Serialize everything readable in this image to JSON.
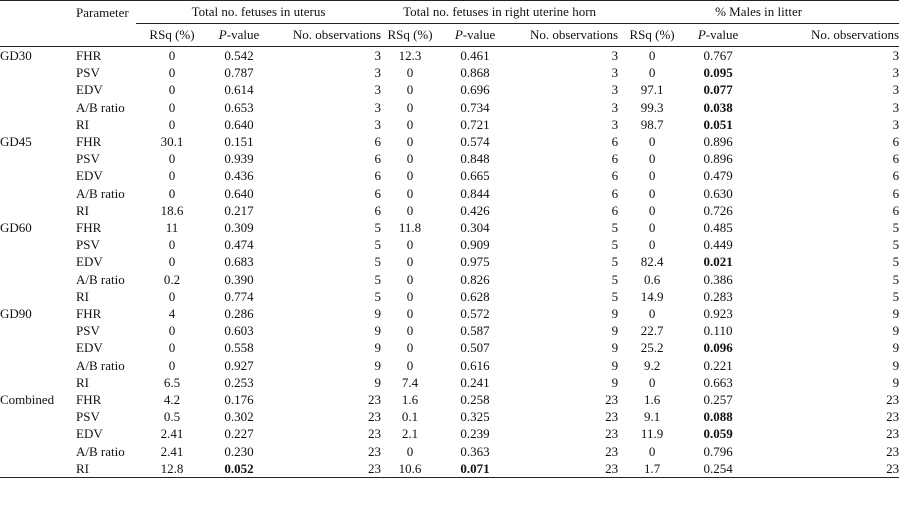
{
  "headers": {
    "parameter": "Parameter",
    "groups": [
      "Total no. fetuses in uterus",
      "Total no. fetuses in right uterine horn",
      "% Males in litter"
    ],
    "sub": {
      "rsq": "RSq (%)",
      "p": "P",
      "p_suffix": "-value",
      "obs": "No. observations"
    }
  },
  "rows": [
    {
      "group": "GD30",
      "param": "FHR",
      "u": [
        "0",
        "0.542",
        "3"
      ],
      "r": [
        "12.3",
        "0.461",
        "3"
      ],
      "m": [
        "0",
        "0.767",
        "3"
      ],
      "bold": []
    },
    {
      "group": "",
      "param": "PSV",
      "u": [
        "0",
        "0.787",
        "3"
      ],
      "r": [
        "0",
        "0.868",
        "3"
      ],
      "m": [
        "0",
        "0.095",
        "3"
      ],
      "bold": [
        "m"
      ]
    },
    {
      "group": "",
      "param": "EDV",
      "u": [
        "0",
        "0.614",
        "3"
      ],
      "r": [
        "0",
        "0.696",
        "3"
      ],
      "m": [
        "97.1",
        "0.077",
        "3"
      ],
      "bold": [
        "m"
      ]
    },
    {
      "group": "",
      "param": "A/B ratio",
      "u": [
        "0",
        "0.653",
        "3"
      ],
      "r": [
        "0",
        "0.734",
        "3"
      ],
      "m": [
        "99.3",
        "0.038",
        "3"
      ],
      "bold": [
        "m"
      ]
    },
    {
      "group": "",
      "param": "RI",
      "u": [
        "0",
        "0.640",
        "3"
      ],
      "r": [
        "0",
        "0.721",
        "3"
      ],
      "m": [
        "98.7",
        "0.051",
        "3"
      ],
      "bold": [
        "m"
      ]
    },
    {
      "group": "GD45",
      "param": "FHR",
      "u": [
        "30.1",
        "0.151",
        "6"
      ],
      "r": [
        "0",
        "0.574",
        "6"
      ],
      "m": [
        "0",
        "0.896",
        "6"
      ],
      "bold": []
    },
    {
      "group": "",
      "param": "PSV",
      "u": [
        "0",
        "0.939",
        "6"
      ],
      "r": [
        "0",
        "0.848",
        "6"
      ],
      "m": [
        "0",
        "0.896",
        "6"
      ],
      "bold": []
    },
    {
      "group": "",
      "param": "EDV",
      "u": [
        "0",
        "0.436",
        "6"
      ],
      "r": [
        "0",
        "0.665",
        "6"
      ],
      "m": [
        "0",
        "0.479",
        "6"
      ],
      "bold": []
    },
    {
      "group": "",
      "param": "A/B ratio",
      "u": [
        "0",
        "0.640",
        "6"
      ],
      "r": [
        "0",
        "0.844",
        "6"
      ],
      "m": [
        "0",
        "0.630",
        "6"
      ],
      "bold": []
    },
    {
      "group": "",
      "param": "RI",
      "u": [
        "18.6",
        "0.217",
        "6"
      ],
      "r": [
        "0",
        "0.426",
        "6"
      ],
      "m": [
        "0",
        "0.726",
        "6"
      ],
      "bold": []
    },
    {
      "group": "GD60",
      "param": "FHR",
      "u": [
        "11",
        "0.309",
        "5"
      ],
      "r": [
        "11.8",
        "0.304",
        "5"
      ],
      "m": [
        "0",
        "0.485",
        "5"
      ],
      "bold": []
    },
    {
      "group": "",
      "param": "PSV",
      "u": [
        "0",
        "0.474",
        "5"
      ],
      "r": [
        "0",
        "0.909",
        "5"
      ],
      "m": [
        "0",
        "0.449",
        "5"
      ],
      "bold": []
    },
    {
      "group": "",
      "param": "EDV",
      "u": [
        "0",
        "0.683",
        "5"
      ],
      "r": [
        "0",
        "0.975",
        "5"
      ],
      "m": [
        "82.4",
        "0.021",
        "5"
      ],
      "bold": [
        "m"
      ]
    },
    {
      "group": "",
      "param": "A/B ratio",
      "u": [
        "0.2",
        "0.390",
        "5"
      ],
      "r": [
        "0",
        "0.826",
        "5"
      ],
      "m": [
        "0.6",
        "0.386",
        "5"
      ],
      "bold": []
    },
    {
      "group": "",
      "param": "RI",
      "u": [
        "0",
        "0.774",
        "5"
      ],
      "r": [
        "0",
        "0.628",
        "5"
      ],
      "m": [
        "14.9",
        "0.283",
        "5"
      ],
      "bold": []
    },
    {
      "group": "GD90",
      "param": "FHR",
      "u": [
        "4",
        "0.286",
        "9"
      ],
      "r": [
        "0",
        "0.572",
        "9"
      ],
      "m": [
        "0",
        "0.923",
        "9"
      ],
      "bold": []
    },
    {
      "group": "",
      "param": "PSV",
      "u": [
        "0",
        "0.603",
        "9"
      ],
      "r": [
        "0",
        "0.587",
        "9"
      ],
      "m": [
        "22.7",
        "0.110",
        "9"
      ],
      "bold": []
    },
    {
      "group": "",
      "param": "EDV",
      "u": [
        "0",
        "0.558",
        "9"
      ],
      "r": [
        "0",
        "0.507",
        "9"
      ],
      "m": [
        "25.2",
        "0.096",
        "9"
      ],
      "bold": [
        "m"
      ]
    },
    {
      "group": "",
      "param": "A/B ratio",
      "u": [
        "0",
        "0.927",
        "9"
      ],
      "r": [
        "0",
        "0.616",
        "9"
      ],
      "m": [
        "9.2",
        "0.221",
        "9"
      ],
      "bold": []
    },
    {
      "group": "",
      "param": "RI",
      "u": [
        "6.5",
        "0.253",
        "9"
      ],
      "r": [
        "7.4",
        "0.241",
        "9"
      ],
      "m": [
        "0",
        "0.663",
        "9"
      ],
      "bold": []
    },
    {
      "group": "Combined",
      "param": "FHR",
      "u": [
        "4.2",
        "0.176",
        "23"
      ],
      "r": [
        "1.6",
        "0.258",
        "23"
      ],
      "m": [
        "1.6",
        "0.257",
        "23"
      ],
      "bold": []
    },
    {
      "group": "",
      "param": "PSV",
      "u": [
        "0.5",
        "0.302",
        "23"
      ],
      "r": [
        "0.1",
        "0.325",
        "23"
      ],
      "m": [
        "9.1",
        "0.088",
        "23"
      ],
      "bold": [
        "m"
      ]
    },
    {
      "group": "",
      "param": "EDV",
      "u": [
        "2.41",
        "0.227",
        "23"
      ],
      "r": [
        "2.1",
        "0.239",
        "23"
      ],
      "m": [
        "11.9",
        "0.059",
        "23"
      ],
      "bold": [
        "m"
      ]
    },
    {
      "group": "",
      "param": "A/B ratio",
      "u": [
        "2.41",
        "0.230",
        "23"
      ],
      "r": [
        "0",
        "0.363",
        "23"
      ],
      "m": [
        "0",
        "0.796",
        "23"
      ],
      "bold": []
    },
    {
      "group": "",
      "param": "RI",
      "u": [
        "12.8",
        "0.052",
        "23"
      ],
      "r": [
        "10.6",
        "0.071",
        "23"
      ],
      "m": [
        "1.7",
        "0.254",
        "23"
      ],
      "bold": [
        "u",
        "r"
      ]
    }
  ]
}
